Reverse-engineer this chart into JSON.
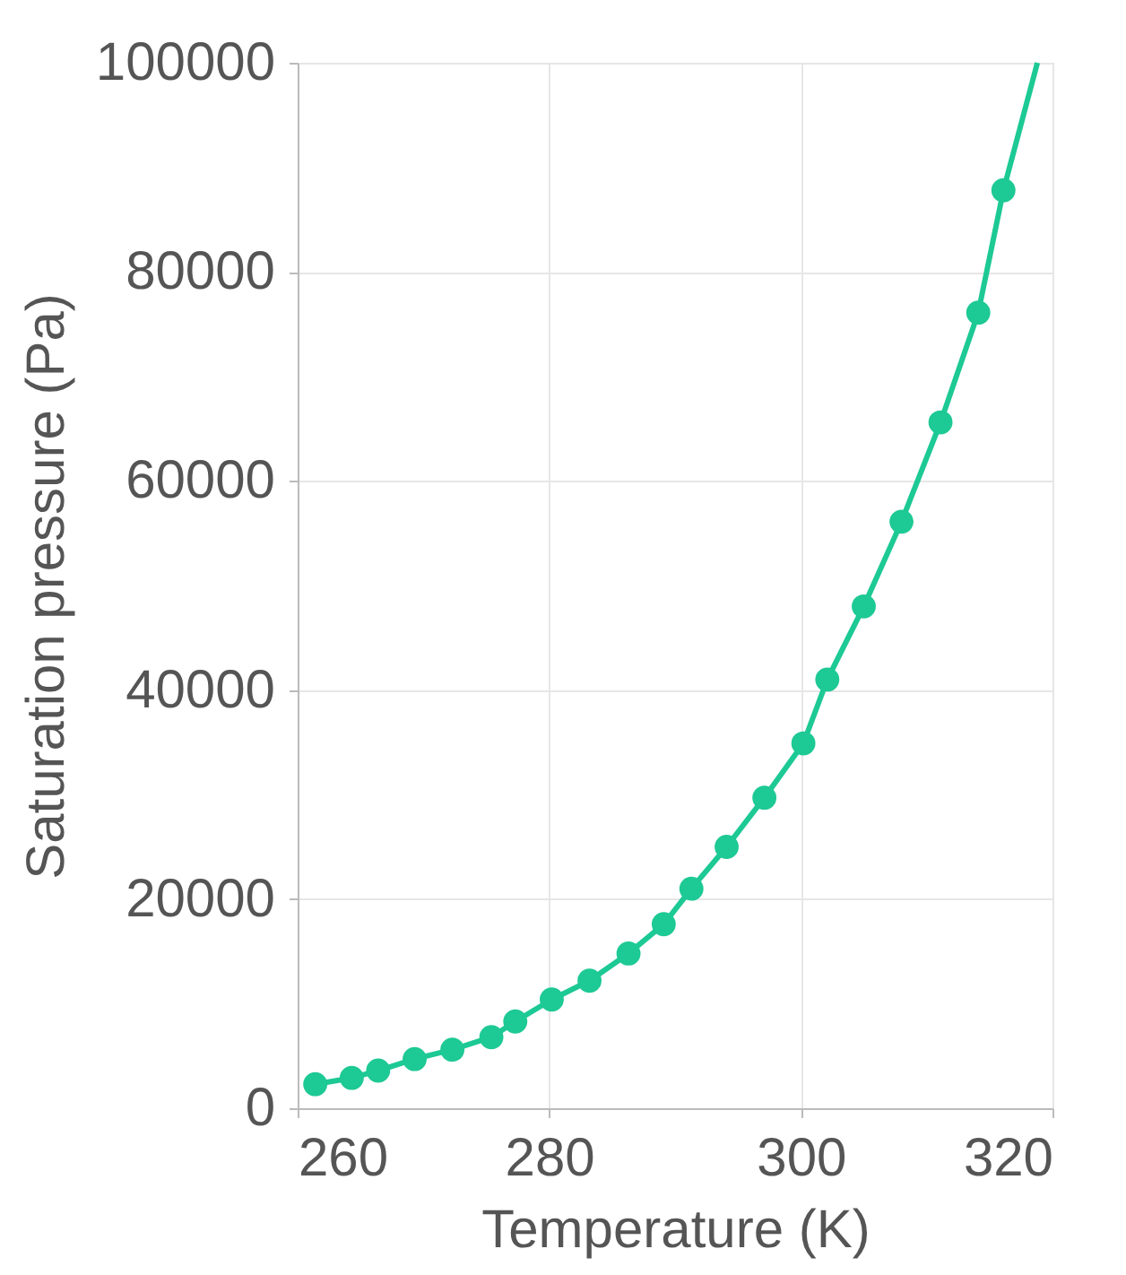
{
  "chart_data": {
    "type": "scatter",
    "xlabel": "Temperature  (K)",
    "ylabel": "Saturation pressure  (Pa)",
    "xlim": [
      260,
      320
    ],
    "xticks": [
      260,
      280,
      300,
      320
    ],
    "ylim": [
      0,
      100000
    ],
    "yticks": [
      0,
      20000,
      40000,
      60000,
      80000,
      100000
    ],
    "grid": true,
    "marker": "circle",
    "series": [
      {
        "type": "line",
        "marker": "none",
        "line_style": "solid",
        "color": "#1dc994",
        "x": [
          261.4,
          264.3,
          266.4,
          269.3,
          272.3,
          275.4,
          277.3,
          280.2,
          283.2,
          286.3,
          289.1,
          291.3,
          294.1,
          297.1,
          300.2,
          302.1,
          305.0,
          308.0,
          311.1,
          314.1,
          316.1,
          318.8
        ],
        "values": [
          2300,
          2900,
          3600,
          4700,
          5600,
          6800,
          8300,
          10400,
          12200,
          14800,
          17600,
          21000,
          25000,
          29700,
          34900,
          41000,
          48000,
          56100,
          65600,
          76100,
          87800,
          100000
        ]
      },
      {
        "color": "#1dc994",
        "x": [
          261.4,
          264.3,
          266.4,
          269.3,
          272.3,
          275.4,
          277.3,
          280.2,
          283.2,
          286.3,
          289.1,
          291.3,
          294.1,
          297.1,
          300.2,
          302.1,
          305.0,
          308.0,
          311.1,
          314.1,
          316.1
        ],
        "values": [
          2300,
          2900,
          3600,
          4700,
          5600,
          6800,
          8300,
          10400,
          12200,
          14800,
          17600,
          21000,
          25000,
          29700,
          34900,
          41000,
          48000,
          56100,
          65600,
          76100,
          87800
        ]
      }
    ]
  }
}
